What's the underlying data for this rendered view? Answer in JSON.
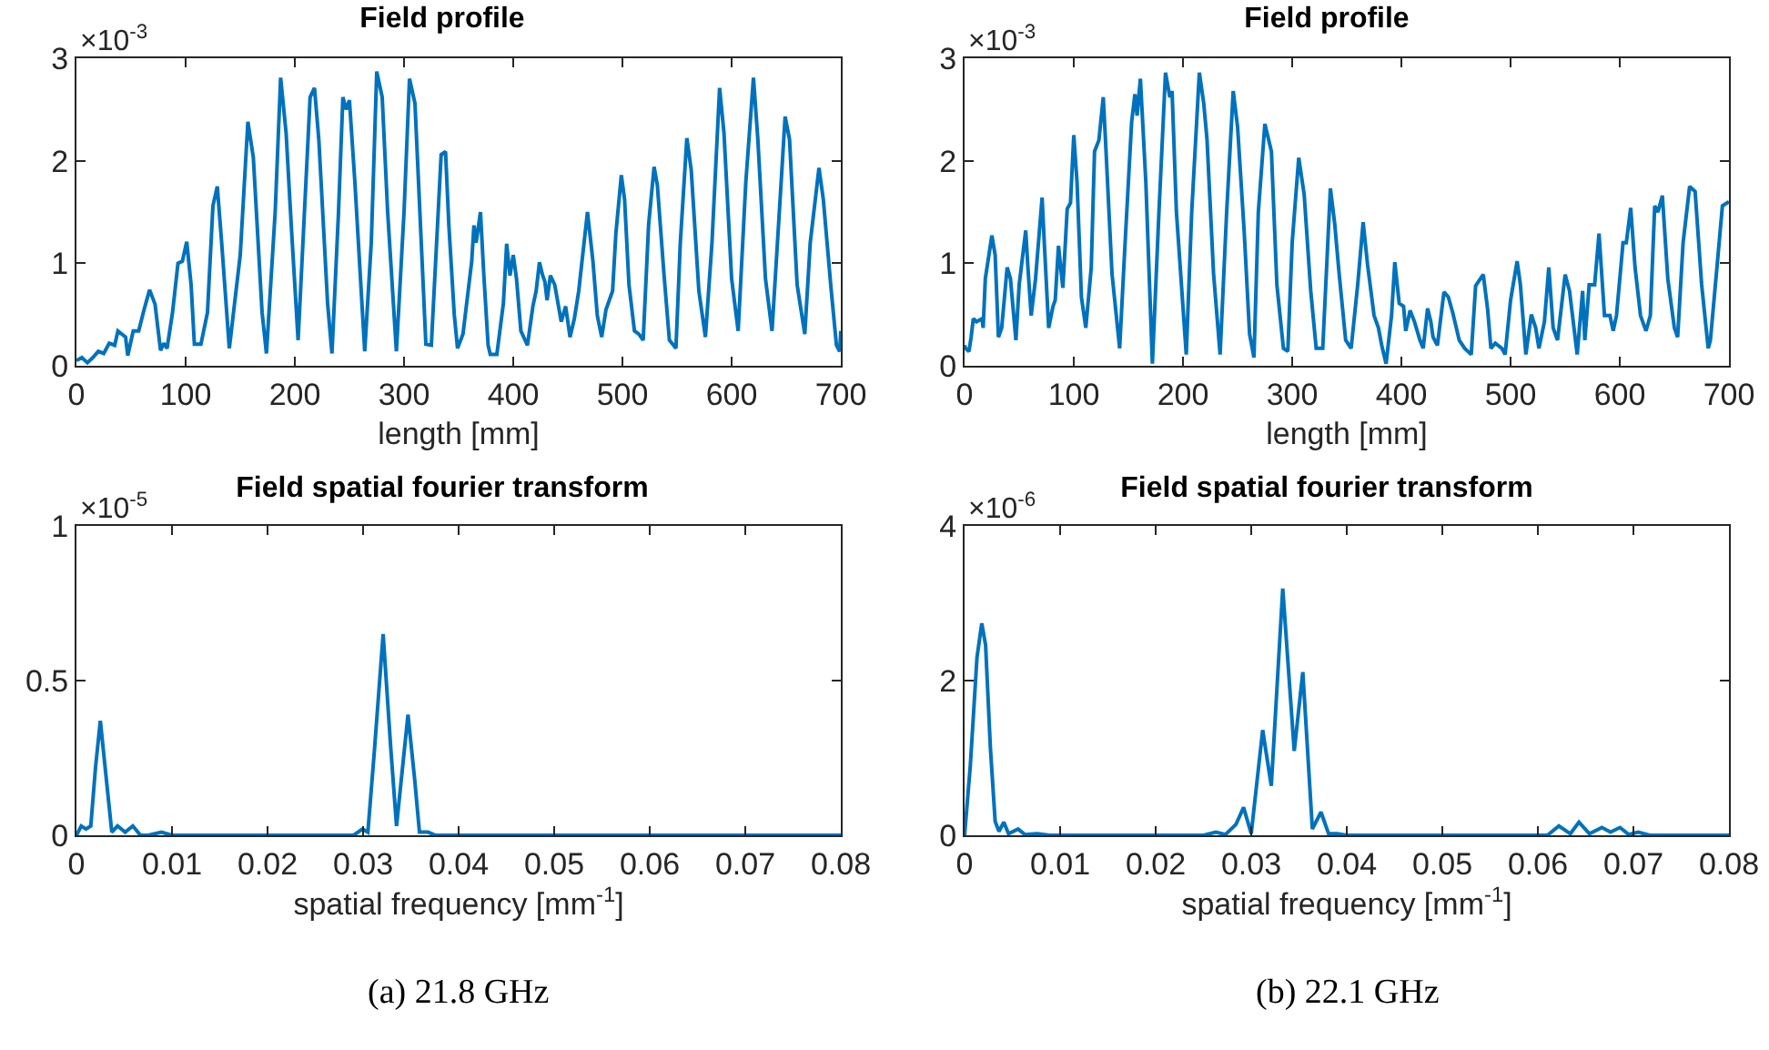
{
  "chart_data": [
    {
      "type": "line",
      "title": "Field profile",
      "xlabel": "length [mm]",
      "xlim": [
        0,
        700
      ],
      "xticks": [
        0,
        100,
        200,
        300,
        400,
        500,
        600,
        700
      ],
      "ylim": [
        0,
        3
      ],
      "yticks": [
        0,
        1,
        2,
        3
      ],
      "annotations": [
        "×10$^{-3}$"
      ],
      "series": [
        {
          "color": "#0072bd",
          "x": [
            0,
            5,
            10,
            15,
            20,
            25,
            30,
            35,
            38,
            45,
            47,
            52,
            57,
            62,
            67,
            72,
            77,
            80,
            83,
            88,
            93,
            97,
            101,
            105,
            108,
            114,
            120,
            125,
            129,
            133,
            140,
            150,
            157,
            162,
            170,
            174,
            182,
            187,
            192,
            197,
            203,
            214,
            218,
            222,
            230,
            234,
            240,
            244,
            247,
            250,
            255,
            264,
            270,
            275,
            280,
            285,
            293,
            300,
            305,
            310,
            320,
            325,
            334,
            338,
            341,
            346,
            349,
            354,
            362,
            364,
            366,
            370,
            373,
            377,
            379,
            385,
            391,
            394,
            397,
            400,
            403,
            407,
            413,
            418,
            421,
            424,
            427,
            429,
            431,
            434,
            438,
            442,
            444,
            448,
            452,
            456,
            460,
            463,
            468,
            473,
            477,
            481,
            485,
            491,
            494,
            499,
            502,
            506,
            511,
            515,
            519,
            524,
            529,
            532,
            538,
            543,
            549,
            553,
            559,
            563,
            570,
            576,
            582,
            589,
            593,
            600,
            606,
            613,
            620,
            624,
            631,
            637,
            643,
            649,
            653,
            660,
            667,
            672,
            680,
            684,
            691,
            696,
            699,
            700
          ],
          "values": [
            0.05,
            0.08,
            0.03,
            0.08,
            0.14,
            0.12,
            0.22,
            0.2,
            0.34,
            0.28,
            0.1,
            0.34,
            0.34,
            0.55,
            0.74,
            0.6,
            0.15,
            0.22,
            0.17,
            0.52,
            1.0,
            1.02,
            1.21,
            0.79,
            0.21,
            0.21,
            0.52,
            1.56,
            1.75,
            1.2,
            0.17,
            1.08,
            2.38,
            2.03,
            0.52,
            0.12,
            1.5,
            2.81,
            2.27,
            1.32,
            0.25,
            2.62,
            2.71,
            2.2,
            0.61,
            0.12,
            1.5,
            2.62,
            2.5,
            2.59,
            1.79,
            0.14,
            1.2,
            2.87,
            2.62,
            1.5,
            0.14,
            1.5,
            2.8,
            2.56,
            0.21,
            0.2,
            2.06,
            2.09,
            1.38,
            0.5,
            0.17,
            0.31,
            1.02,
            1.37,
            1.2,
            1.5,
            0.9,
            0.2,
            0.11,
            0.11,
            0.61,
            1.19,
            0.88,
            1.08,
            0.85,
            0.34,
            0.2,
            0.58,
            0.73,
            1.01,
            0.88,
            0.82,
            0.64,
            0.88,
            0.79,
            0.55,
            0.43,
            0.58,
            0.28,
            0.46,
            0.73,
            1.02,
            1.5,
            1.02,
            0.49,
            0.28,
            0.55,
            0.73,
            1.29,
            1.86,
            1.62,
            0.79,
            0.34,
            0.31,
            0.25,
            1.38,
            1.94,
            1.76,
            0.9,
            0.25,
            0.17,
            1.2,
            2.22,
            1.91,
            0.73,
            0.28,
            1.2,
            2.71,
            2.27,
            0.85,
            0.34,
            1.79,
            2.81,
            2.21,
            0.85,
            0.34,
            1.38,
            2.43,
            2.21,
            0.79,
            0.31,
            1.2,
            1.93,
            1.62,
            0.76,
            0.2,
            0.14,
            0.34
          ]
        }
      ]
    },
    {
      "type": "line",
      "title": "Field profile",
      "xlabel": "length [mm]",
      "xlim": [
        0,
        700
      ],
      "xticks": [
        0,
        100,
        200,
        300,
        400,
        500,
        600,
        700
      ],
      "ylim": [
        0,
        3
      ],
      "yticks": [
        0,
        1,
        2,
        3
      ],
      "annotations": [
        "×10$^{-3}$"
      ],
      "series": [
        {
          "color": "#0072bd",
          "x": [
            0,
            1,
            4,
            6,
            8,
            11,
            16,
            17,
            19,
            25,
            28,
            31,
            34,
            39,
            42,
            47,
            50,
            56,
            58,
            61,
            65,
            71,
            73,
            77,
            81,
            83,
            86,
            90,
            94,
            97,
            100,
            103,
            107,
            111,
            116,
            119,
            123,
            127,
            129,
            135,
            142,
            147,
            153,
            156,
            158,
            161,
            166,
            172,
            178,
            184,
            188,
            190,
            194,
            203,
            208,
            215,
            219,
            222,
            228,
            234,
            240,
            246,
            250,
            256,
            261,
            265,
            269,
            275,
            281,
            286,
            292,
            296,
            300,
            306,
            311,
            317,
            322,
            328,
            335,
            339,
            343,
            349,
            354,
            360,
            365,
            369,
            375,
            379,
            382,
            386,
            391,
            394,
            398,
            402,
            404,
            408,
            412,
            417,
            420,
            424,
            427,
            429,
            433,
            439,
            443,
            447,
            453,
            458,
            464,
            468,
            475,
            479,
            482,
            486,
            492,
            495,
            500,
            506,
            509,
            514,
            519,
            523,
            526,
            531,
            535,
            539,
            543,
            550,
            554,
            561,
            566,
            568,
            572,
            577,
            581,
            586,
            591,
            594,
            597,
            603,
            606,
            610,
            614,
            619,
            624,
            628,
            632,
            635,
            639,
            644,
            650,
            653,
            658,
            664,
            669,
            675,
            681,
            683,
            689,
            694,
            700
          ],
          "values": [
            0.2,
            0.17,
            0.14,
            0.28,
            0.46,
            0.43,
            0.46,
            0.37,
            0.85,
            1.27,
            1.08,
            0.28,
            0.37,
            0.96,
            0.85,
            0.25,
            0.79,
            1.32,
            0.96,
            0.49,
            0.85,
            1.64,
            1.2,
            0.37,
            0.58,
            0.64,
            1.17,
            0.76,
            1.53,
            1.59,
            2.25,
            1.79,
            0.67,
            0.37,
            0.96,
            2.09,
            2.2,
            2.62,
            2.21,
            0.9,
            0.17,
            1.2,
            2.38,
            2.65,
            2.44,
            2.8,
            1.79,
            0.02,
            1.5,
            2.86,
            2.62,
            2.68,
            1.5,
            0.11,
            1.5,
            2.86,
            2.56,
            2.21,
            0.9,
            0.11,
            1.5,
            2.68,
            2.33,
            1.32,
            0.31,
            0.08,
            1.5,
            2.36,
            2.09,
            0.79,
            0.17,
            0.14,
            1.2,
            2.03,
            1.67,
            0.73,
            0.17,
            0.17,
            1.73,
            1.38,
            0.9,
            0.25,
            0.17,
            0.79,
            1.4,
            0.99,
            0.49,
            0.37,
            0.2,
            0.02,
            0.49,
            1.01,
            0.61,
            0.58,
            0.34,
            0.54,
            0.43,
            0.25,
            0.17,
            0.56,
            0.43,
            0.28,
            0.2,
            0.72,
            0.67,
            0.52,
            0.25,
            0.17,
            0.11,
            0.78,
            0.89,
            0.55,
            0.17,
            0.22,
            0.17,
            0.11,
            0.64,
            1.02,
            0.79,
            0.11,
            0.5,
            0.37,
            0.17,
            0.43,
            0.96,
            0.37,
            0.25,
            0.89,
            0.73,
            0.11,
            0.73,
            0.25,
            0.79,
            0.79,
            1.29,
            0.49,
            0.49,
            0.34,
            0.49,
            1.2,
            1.2,
            1.54,
            0.96,
            0.49,
            0.34,
            0.49,
            1.56,
            1.5,
            1.66,
            0.85,
            0.37,
            0.28,
            1.2,
            1.75,
            1.7,
            0.79,
            0.17,
            0.25,
            0.96,
            1.56,
            1.6
          ]
        }
      ]
    },
    {
      "type": "line",
      "title": "Field spatial fourier transform",
      "xlabel": "spatial frequency [mm$^{-1}$]",
      "xlim": [
        0,
        0.08
      ],
      "xticks": [
        0,
        0.01,
        0.02,
        0.03,
        0.04,
        0.05,
        0.06,
        0.07,
        0.08
      ],
      "ylim": [
        0,
        1
      ],
      "yticks": [
        0,
        0.5,
        1
      ],
      "annotations": [
        "×10$^{-5}$",
        "(a) 21.8 GHz"
      ],
      "series": [
        {
          "color": "#0072bd",
          "x": [
            0,
            0.0005,
            0.001,
            0.0015,
            0.002,
            0.0025,
            0.003,
            0.0037,
            0.0043,
            0.0051,
            0.0059,
            0.0067,
            0.0075,
            0.0089,
            0.01,
            0.029,
            0.02995,
            0.0305,
            0.0312,
            0.0321,
            0.0329,
            0.0335,
            0.034,
            0.0347,
            0.0354,
            0.0359,
            0.0368,
            0.0376,
            0.08
          ],
          "values": [
            0,
            0.03,
            0.02,
            0.03,
            0.22,
            0.37,
            0.22,
            0.01,
            0.03,
            0.01,
            0.03,
            0,
            0,
            0.01,
            0,
            0,
            0.02,
            0.01,
            0.28,
            0.65,
            0.28,
            0.03,
            0.18,
            0.39,
            0.18,
            0.01,
            0.01,
            0,
            0
          ]
        }
      ]
    },
    {
      "type": "line",
      "title": "Field spatial fourier transform",
      "xlabel": "spatial frequency [mm$^{-1}$]",
      "xlim": [
        0,
        0.08
      ],
      "xticks": [
        0,
        0.01,
        0.02,
        0.03,
        0.04,
        0.05,
        0.06,
        0.07,
        0.08
      ],
      "ylim": [
        0,
        4
      ],
      "yticks": [
        0,
        2,
        4
      ],
      "annotations": [
        "×10$^{-6}$",
        "(b) 22.1 GHz"
      ],
      "series": [
        {
          "color": "#0072bd",
          "x": [
            0,
            0.0006,
            0.0013,
            0.0018,
            0.0022,
            0.0027,
            0.0032,
            0.0036,
            0.0041,
            0.0046,
            0.0056,
            0.0063,
            0.0076,
            0.0089,
            0.025,
            0.0263,
            0.0273,
            0.0284,
            0.0292,
            0.03,
            0.0312,
            0.0321,
            0.0333,
            0.0345,
            0.0354,
            0.0364,
            0.0373,
            0.0381,
            0.039,
            0.04,
            0.061,
            0.0622,
            0.0634,
            0.0643,
            0.0654,
            0.0667,
            0.0676,
            0.0686,
            0.0695,
            0.0705,
            0.0717,
            0.08
          ],
          "values": [
            0,
            0.9,
            2.3,
            2.74,
            2.46,
            1.13,
            0.18,
            0.05,
            0.17,
            0.02,
            0.08,
            0.01,
            0.02,
            0,
            0,
            0.04,
            0.01,
            0.14,
            0.36,
            0.02,
            1.36,
            0.64,
            3.19,
            1.09,
            2.11,
            0.08,
            0.3,
            0.02,
            0.02,
            0,
            0,
            0.12,
            0.02,
            0.17,
            0.02,
            0.1,
            0.04,
            0.1,
            0.01,
            0.04,
            0,
            0
          ]
        }
      ]
    }
  ]
}
